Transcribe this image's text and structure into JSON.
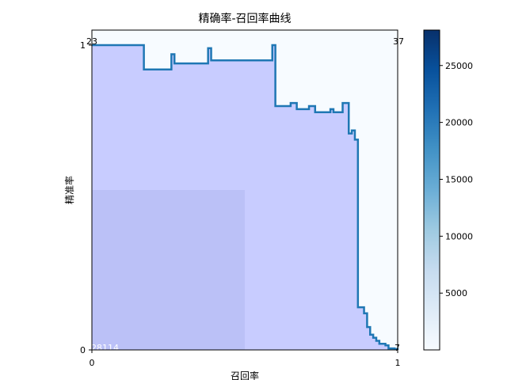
{
  "chart_data": {
    "type": "line",
    "title": "精确率-召回率曲线",
    "xlabel": "召回率",
    "ylabel": "精准率",
    "xlim": [
      0,
      1
    ],
    "ylim": [
      0,
      1
    ],
    "x_ticks": [
      "0",
      "1"
    ],
    "y_ticks": [
      "0",
      "1"
    ],
    "background_heatmap": {
      "type": "heatmap",
      "matrix": [
        [
          28114,
          7
        ],
        [
          23,
          37
        ]
      ],
      "cell_labels": [
        "28114",
        "7",
        "23",
        "37"
      ],
      "colormap": "Blues",
      "colors": {
        "high": "#08306b",
        "low": "#f7fbff"
      }
    },
    "colorbar": {
      "ticks": [
        5000,
        10000,
        15000,
        20000,
        25000
      ],
      "tick_labels": [
        "5000",
        "10000",
        "15000",
        "20000",
        "25000"
      ],
      "min": 7,
      "max": 28114
    },
    "series": [
      {
        "color": "#1f77b4",
        "fill_color": "#c5c9ff",
        "style": "step",
        "recall": [
          0.0,
          0.16,
          0.17,
          0.26,
          0.27,
          0.38,
          0.39,
          0.59,
          0.6,
          0.65,
          0.67,
          0.71,
          0.73,
          0.78,
          0.79,
          0.82,
          0.84,
          0.85,
          0.86,
          0.87,
          0.88,
          0.89,
          0.9,
          0.91,
          0.92,
          0.93,
          0.94,
          0.96,
          0.97,
          0.99,
          1.0
        ],
        "precision": [
          1.0,
          1.0,
          0.92,
          0.97,
          0.94,
          0.99,
          0.95,
          1.0,
          0.8,
          0.81,
          0.79,
          0.8,
          0.78,
          0.79,
          0.78,
          0.81,
          0.71,
          0.72,
          0.69,
          0.14,
          0.14,
          0.12,
          0.075,
          0.05,
          0.04,
          0.03,
          0.02,
          0.015,
          0.005,
          0.003,
          0.0
        ]
      }
    ]
  }
}
